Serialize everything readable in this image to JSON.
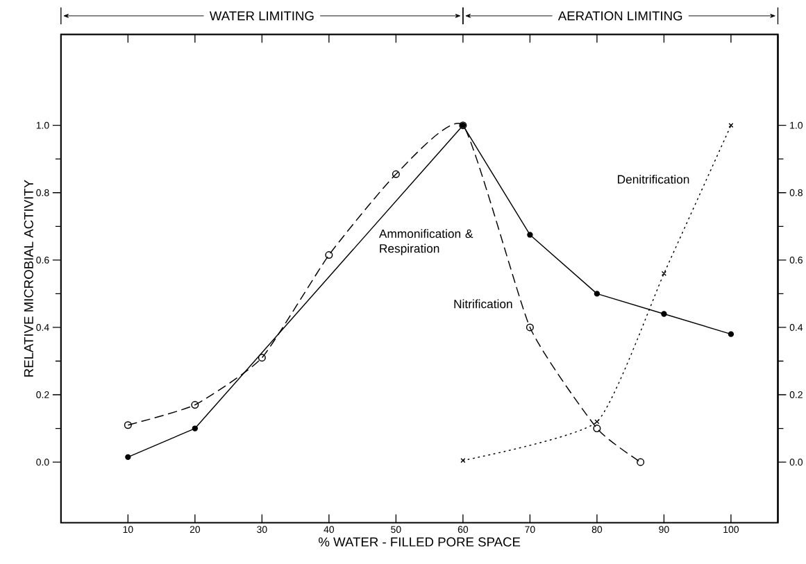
{
  "chart_data": {
    "type": "line",
    "xlabel": "% WATER - FILLED PORE SPACE",
    "ylabel": "RELATIVE MICROBIAL ACTIVITY",
    "annotations": [
      "WATER LIMITING",
      "AERATION LIMITING"
    ],
    "xlim": [
      0,
      107
    ],
    "ylim": [
      -0.18,
      1.27
    ],
    "xticks": [
      10,
      20,
      30,
      40,
      50,
      60,
      70,
      80,
      90,
      100
    ],
    "yticks": [
      {
        "value": 0,
        "label": "0.0"
      },
      {
        "value": 0.2,
        "label": "0.2"
      },
      {
        "value": 0.4,
        "label": "0.4"
      },
      {
        "value": 0.6,
        "label": "0.6"
      },
      {
        "value": 0.8,
        "label": "0.8"
      },
      {
        "value": 1,
        "label": "1.0"
      }
    ],
    "y2lim": [
      -0.18,
      1.27
    ],
    "y2ticks": [
      {
        "value": 0,
        "label": "0.0"
      },
      {
        "value": 0.2,
        "label": "0.2"
      },
      {
        "value": 0.4,
        "label": "0.4"
      },
      {
        "value": 0.6,
        "label": "0.6"
      },
      {
        "value": 0.8,
        "label": "0.8"
      },
      {
        "value": 1,
        "label": "1.0"
      }
    ],
    "grid": false,
    "series": [
      {
        "name": "Ammonification & Respiration",
        "color": "#000000",
        "line_style": "solid",
        "marker": "circle",
        "x": [
          10,
          20,
          60,
          70,
          80,
          90,
          100
        ],
        "values": [
          0.015,
          0.1,
          1.0,
          0.675,
          0.5,
          0.44,
          0.38
        ]
      },
      {
        "name": "Nitrification",
        "color": "#000000",
        "line_style": "dashed",
        "marker": "circle",
        "x": [
          10,
          20,
          30,
          40,
          50,
          60,
          70,
          80,
          86.5
        ],
        "values": [
          0.11,
          0.17,
          0.31,
          0.615,
          0.855,
          1.0,
          0.4,
          0.1,
          0.0
        ]
      },
      {
        "name": "Denitrification",
        "color": "#000000",
        "line_style": "dotted",
        "marker": "cross",
        "axis": "y2",
        "x": [
          60,
          80,
          90,
          100
        ],
        "values": [
          0.005,
          0.12,
          0.56,
          1.0
        ]
      }
    ]
  }
}
